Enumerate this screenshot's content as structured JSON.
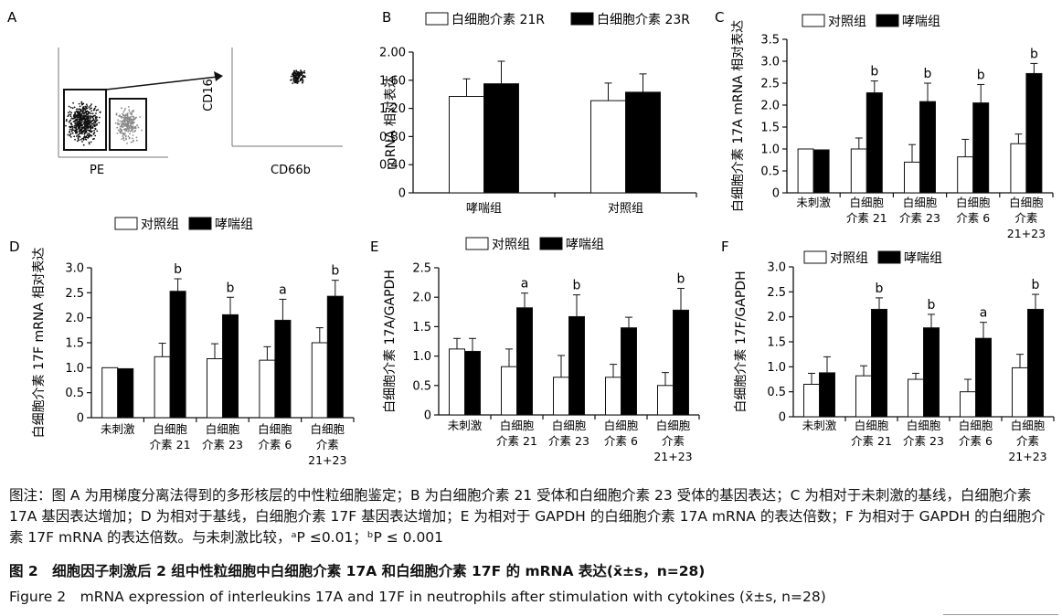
{
  "panel_a": {
    "label": "A",
    "xlabel_left": "PE",
    "ylabel_right": "CD16",
    "xlabel_right": "CD66b"
  },
  "chart_data": [
    {
      "panel": "B",
      "type": "bar",
      "ylabel": "mRNA 相对表达",
      "categories": [
        "哮喘组",
        "对照组"
      ],
      "ylim": [
        0,
        2.0
      ],
      "yticks": [
        "0",
        "0.40",
        "0.80",
        "1.20",
        "1.60",
        "2.00"
      ],
      "series": [
        {
          "name": "白细胞介素 21R",
          "values": [
            1.37,
            1.31
          ],
          "errors": [
            0.25,
            0.25
          ],
          "color": "#ffffff"
        },
        {
          "name": "白细胞介素 23R",
          "values": [
            1.55,
            1.43
          ],
          "errors": [
            0.32,
            0.26
          ],
          "color": "#000000"
        }
      ],
      "sig": [
        [
          "",
          ""
        ],
        [
          "",
          ""
        ]
      ],
      "legend_position": "top"
    },
    {
      "panel": "C",
      "type": "bar",
      "ylabel": "白细胞介素 17A mRNA 相对表达",
      "categories": [
        "未刺激",
        "白细胞\n介素 21",
        "白细胞\n介素 23",
        "白细胞\n介素 6",
        "白细胞\n介素\n21+23"
      ],
      "ylim": [
        0,
        3.5
      ],
      "yticks": [
        "0",
        "0.5",
        "1.0",
        "1.5",
        "2.0",
        "2.5",
        "3.0",
        "3.5"
      ],
      "series": [
        {
          "name": "对照组",
          "values": [
            1.0,
            1.0,
            0.7,
            0.82,
            1.12
          ],
          "errors": [
            0,
            0.25,
            0.4,
            0.4,
            0.22
          ],
          "color": "#ffffff"
        },
        {
          "name": "哮喘组",
          "values": [
            0.98,
            2.28,
            2.08,
            2.05,
            2.72
          ],
          "errors": [
            0,
            0.27,
            0.42,
            0.42,
            0.23
          ],
          "color": "#000000"
        }
      ],
      "sig": [
        "",
        "b",
        "b",
        "b",
        "b"
      ],
      "legend_position": "top"
    },
    {
      "panel": "D",
      "type": "bar",
      "ylabel": "白细胞介素 17F mRNA 相对表达",
      "categories": [
        "未刺激",
        "白细胞\n介素 21",
        "白细胞\n介素 23",
        "白细胞\n介素 6",
        "白细胞\n介素\n21+23"
      ],
      "ylim": [
        0,
        3.0
      ],
      "yticks": [
        "0",
        "0.5",
        "1.0",
        "1.5",
        "2.0",
        "2.5",
        "3.0"
      ],
      "series": [
        {
          "name": "对照组",
          "values": [
            1.0,
            1.22,
            1.18,
            1.15,
            1.5
          ],
          "errors": [
            0,
            0.27,
            0.3,
            0.27,
            0.3
          ],
          "color": "#ffffff"
        },
        {
          "name": "哮喘组",
          "values": [
            0.98,
            2.53,
            2.06,
            1.95,
            2.43
          ],
          "errors": [
            0,
            0.25,
            0.35,
            0.42,
            0.32
          ],
          "color": "#000000"
        }
      ],
      "sig": [
        "",
        "b",
        "b",
        "a",
        "b"
      ],
      "legend_position": "top"
    },
    {
      "panel": "E",
      "type": "bar",
      "ylabel": "白细胞介素 17A/GAPDH",
      "categories": [
        "未刺激",
        "白细胞\n介素 21",
        "白细胞\n介素 23",
        "白细胞\n介素 6",
        "白细胞\n介素\n21+23"
      ],
      "ylim": [
        0,
        2.5
      ],
      "yticks": [
        "0",
        "0.5",
        "1.0",
        "1.5",
        "2.0",
        "2.5"
      ],
      "series": [
        {
          "name": "对照组",
          "values": [
            1.12,
            0.82,
            0.64,
            0.64,
            0.5
          ],
          "errors": [
            0.18,
            0.3,
            0.37,
            0.22,
            0.22
          ],
          "color": "#ffffff"
        },
        {
          "name": "哮喘组",
          "values": [
            1.08,
            1.82,
            1.67,
            1.48,
            1.78
          ],
          "errors": [
            0.22,
            0.25,
            0.37,
            0.18,
            0.37
          ],
          "color": "#000000"
        }
      ],
      "sig": [
        "",
        "a",
        "b",
        "",
        "b"
      ],
      "legend_position": "top"
    },
    {
      "panel": "F",
      "type": "bar",
      "ylabel": "白细胞介素 17F/GAPDH",
      "categories": [
        "未刺激",
        "白细胞\n介素 21",
        "白细胞\n介素 23",
        "白细胞\n介素 6",
        "白细胞\n介素\n21+23"
      ],
      "ylim": [
        0,
        3.0
      ],
      "yticks": [
        "0",
        "0.5",
        "1.0",
        "1.5",
        "2.0",
        "2.5",
        "3.0"
      ],
      "series": [
        {
          "name": "对照组",
          "values": [
            0.65,
            0.82,
            0.75,
            0.5,
            0.98
          ],
          "errors": [
            0.22,
            0.2,
            0.12,
            0.25,
            0.27
          ],
          "color": "#ffffff"
        },
        {
          "name": "哮喘组",
          "values": [
            0.88,
            2.15,
            1.78,
            1.57,
            2.15
          ],
          "errors": [
            0.32,
            0.23,
            0.27,
            0.32,
            0.3
          ],
          "color": "#000000"
        }
      ],
      "sig": [
        "",
        "b",
        "b",
        "a",
        "b"
      ],
      "legend_position": "top"
    }
  ],
  "caption": {
    "note": "图注：图 A 为用梯度分离法得到的多形核层的中性粒细胞鉴定；B 为白细胞介素 21 受体和白细胞介素 23 受体的基因表达；C 为相对于未刺激的基线，白细胞介素 17A 基因表达增加；D 为相对于基线，白细胞介素 17F 基因表达增加；E 为相对于 GAPDH 的白细胞介素 17A mRNA 的表达倍数；F 为相对于 GAPDH 的白细胞介素 17F mRNA 的表达倍数。与未刺激比较，ᵃP ≤0.01；ᵇP ≤ 0.001",
    "title_cn": "图 2　细胞因子刺激后 2 组中性粒细胞中白细胞介素 17A 和白细胞介素 17F 的 mRNA 表达(x̄±s，n=28)",
    "title_en": "Figure 2　mRNA expression of interleukins 17A and 17F in neutrophils after stimulation with cytokines (x̄±s, n=28)"
  }
}
